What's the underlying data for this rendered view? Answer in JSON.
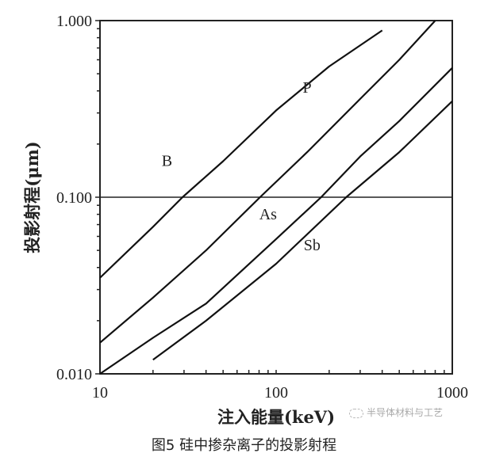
{
  "chart_data": {
    "type": "line",
    "title": "",
    "xlabel": "注入能量(keV)",
    "ylabel": "投影射程(μm)",
    "xscale": "log",
    "yscale": "log",
    "xlim": [
      10,
      1000
    ],
    "ylim": [
      0.01,
      1.0
    ],
    "xticks": [
      10,
      100,
      1000
    ],
    "xtick_labels": [
      "10",
      "100",
      "1000"
    ],
    "yticks": [
      0.01,
      0.1,
      1.0
    ],
    "ytick_labels": [
      "0.010",
      "0.100",
      "1.000"
    ],
    "grid": false,
    "reference_line": {
      "y": 0.1
    },
    "legend": "inline labels",
    "series": [
      {
        "name": "B",
        "label_pos": [
          24,
          0.15
        ],
        "x": [
          10,
          20,
          29.4,
          50,
          100,
          200,
          400
        ],
        "y": [
          0.035,
          0.068,
          0.1,
          0.16,
          0.31,
          0.55,
          0.88
        ]
      },
      {
        "name": "P",
        "label_pos": [
          150,
          0.39
        ],
        "x": [
          10,
          20,
          40,
          81,
          150,
          300,
          500,
          800
        ],
        "y": [
          0.015,
          0.027,
          0.05,
          0.1,
          0.18,
          0.36,
          0.6,
          1.0
        ]
      },
      {
        "name": "As",
        "label_pos": [
          90,
          0.075
        ],
        "x": [
          10,
          20,
          40,
          100,
          180,
          300,
          500,
          1000
        ],
        "y": [
          0.01,
          0.016,
          0.025,
          0.058,
          0.1,
          0.17,
          0.27,
          0.54
        ]
      },
      {
        "name": "Sb",
        "label_pos": [
          160,
          0.05
        ],
        "x": [
          20,
          40,
          100,
          250,
          500,
          1000
        ],
        "y": [
          0.012,
          0.02,
          0.042,
          0.1,
          0.18,
          0.35
        ]
      }
    ]
  },
  "caption": "图5 硅中掺杂离子的投影射程",
  "watermark": "半导体材料与工艺"
}
